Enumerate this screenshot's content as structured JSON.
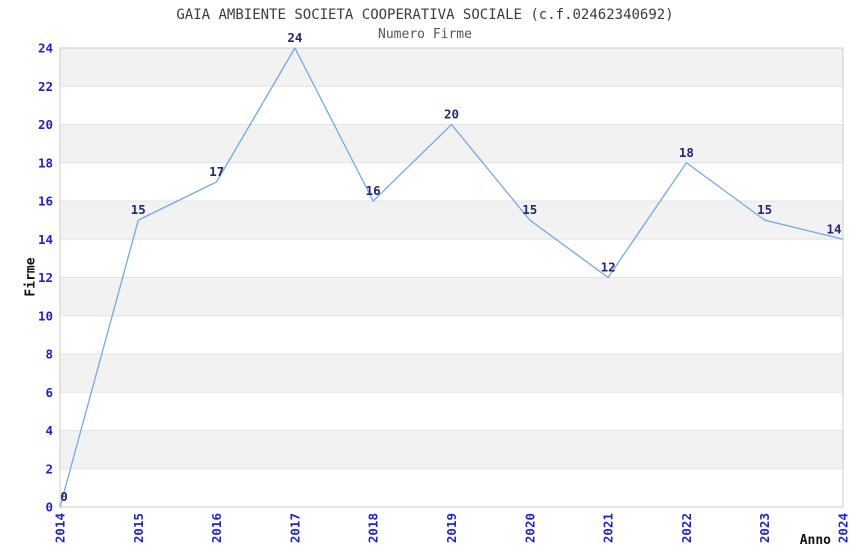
{
  "header": {
    "title": "GAIA AMBIENTE SOCIETA COOPERATIVA SOCIALE (c.f.02462340692)",
    "subtitle": "Numero Firme"
  },
  "chart_data": {
    "type": "line",
    "title": "GAIA AMBIENTE SOCIETA COOPERATIVA SOCIALE (c.f.02462340692)",
    "subtitle": "Numero Firme",
    "xlabel": "Anno",
    "ylabel": "Firme",
    "categories": [
      "2014",
      "2015",
      "2016",
      "2017",
      "2018",
      "2019",
      "2020",
      "2021",
      "2022",
      "2023",
      "2024"
    ],
    "values": [
      0,
      15,
      17,
      24,
      16,
      20,
      15,
      12,
      18,
      15,
      14
    ],
    "point_labels": [
      "0",
      "15",
      "17",
      "24",
      "16",
      "20",
      "15",
      "12",
      "18",
      "15",
      "14"
    ],
    "ylim": [
      0,
      24
    ],
    "ytick_step": 2,
    "yticks": [
      0,
      2,
      4,
      6,
      8,
      10,
      12,
      14,
      16,
      18,
      20,
      22,
      24
    ],
    "grid": "horizontal-bands",
    "legend_position": "none",
    "colors": {
      "line": "#74a9e3",
      "tick_label": "#2121cc",
      "point_label": "#262673",
      "band_fill": "#f2f2f2",
      "gridline": "#e4e4e4",
      "plot_border": "#cccccc",
      "plot_background": "#ffffff"
    }
  }
}
